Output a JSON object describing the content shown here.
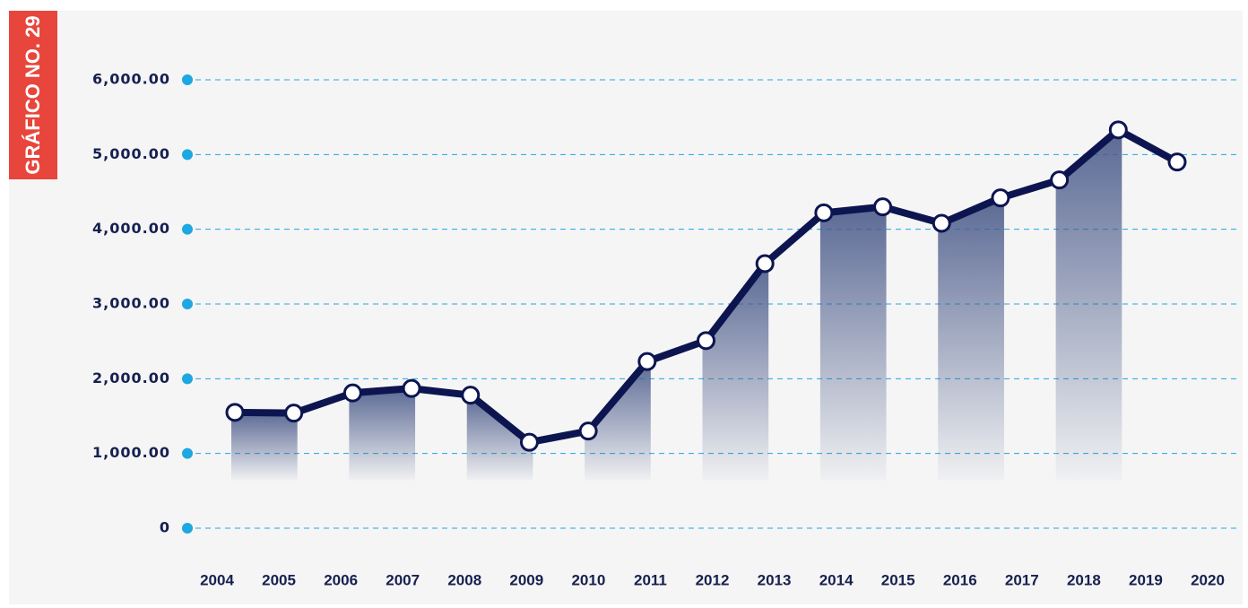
{
  "chart_data": {
    "type": "line",
    "title": "GRÁFICO NO. 29",
    "categories": [
      "2004",
      "2005",
      "2006",
      "2007",
      "2008",
      "2009",
      "2010",
      "2011",
      "2012",
      "2013",
      "2014",
      "2015",
      "2016",
      "2017",
      "2018",
      "2019",
      "2020"
    ],
    "values": [
      1550,
      1540,
      1810,
      1870,
      1780,
      1150,
      1300,
      2230,
      2510,
      3540,
      4220,
      4300,
      4080,
      4420,
      4660,
      5330,
      4900
    ],
    "color": "#0d1550",
    "ylim": [
      0,
      6000
    ],
    "yticks": [
      0,
      {
        "value": 1000,
        "label": "1,000.00"
      },
      {
        "value": 2000,
        "label": "2,000.00"
      },
      {
        "value": 3000,
        "label": "3,000.00"
      },
      {
        "value": 4000,
        "label": "4,000.00"
      },
      {
        "value": 5000,
        "label": "5,000.00"
      },
      {
        "value": 6000,
        "label": "6,000.00"
      }
    ],
    "grid": true
  }
}
